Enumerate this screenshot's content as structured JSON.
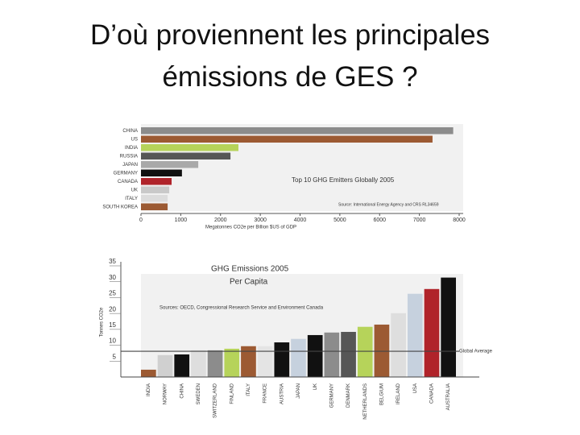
{
  "title": "D’où proviennent les principales émissions de GES ?",
  "chart_data": [
    {
      "type": "barh",
      "title": "Top 10 GHG Emitters Globally 2005",
      "source": "Source: International Energy Agency and CRS RL34659",
      "x_label": "Megatonnes CO2e per Billion $US of GDP",
      "categories": [
        "CHINA",
        "US",
        "INDIA",
        "RUSSIA",
        "JAPAN",
        "GERMANY",
        "CANADA",
        "UK",
        "ITALY",
        "SOUTH KOREA"
      ],
      "values": [
        7850,
        7330,
        2450,
        2250,
        1440,
        1030,
        770,
        710,
        670,
        670
      ],
      "colors": [
        "#8c8c8c",
        "#9c5a33",
        "#b6d35a",
        "#565656",
        "#a9a9a9",
        "#111111",
        "#b0232a",
        "#c9c9c9",
        "#dcdcdc",
        "#9c5a33"
      ],
      "xlim": [
        0,
        8000
      ],
      "xticks": [
        0,
        1000,
        2000,
        3000,
        4000,
        5000,
        6000,
        7000,
        8000
      ]
    },
    {
      "type": "bar",
      "title": "GHG Emissions 2005",
      "subtitle": "Per Capita",
      "source": "Sources: OECD, Congressional Research Service and Environment Canada",
      "y_label": "Tonnes CO2e",
      "categories": [
        "INDIA",
        "NORWAY",
        "CHINA",
        "SWEDEN",
        "SWITZERLAND",
        "FINLAND",
        "ITALY",
        "FRANCE",
        "AUSTRIA",
        "JAPAN",
        "UK",
        "GERMANY",
        "DENMARK",
        "NETHERLANDS",
        "BELGIUM",
        "IRELAND",
        "USA",
        "CANADA",
        "AUSTRALIA"
      ],
      "values": [
        2.3,
        6.9,
        7.1,
        8.4,
        8.4,
        8.9,
        9.7,
        9.7,
        10.9,
        12,
        13.2,
        14,
        14.2,
        15.8,
        16.5,
        20.1,
        26.2,
        27.7,
        31.3
      ],
      "colors": [
        "#9c5a33",
        "#d0d0d0",
        "#111111",
        "#dedede",
        "#8c8c8c",
        "#b6d35a",
        "#9c5a33",
        "#e4e4e4",
        "#111111",
        "#c6d1de",
        "#111111",
        "#8c8c8c",
        "#565656",
        "#b6d35a",
        "#9c5a33",
        "#dedede",
        "#c6d1de",
        "#b0232a",
        "#111111"
      ],
      "reference_line": {
        "value": 8.1,
        "label": "Global Average"
      },
      "ylim": [
        0,
        35
      ],
      "yticks": [
        5,
        10,
        15,
        20,
        25,
        30,
        35
      ]
    }
  ]
}
